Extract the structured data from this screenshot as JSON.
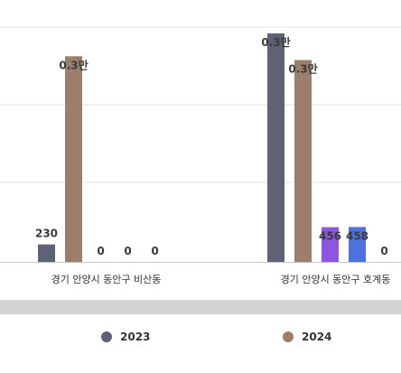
{
  "chart_data": {
    "type": "bar",
    "categories": [
      "경기 안양시 동안구 비산동",
      "경기 안양시 동안구 호계동"
    ],
    "series": [
      {
        "name": "2023",
        "values": [
          230,
          3000
        ],
        "labels": [
          "230",
          "0.3만"
        ]
      },
      {
        "name": "2024",
        "values": [
          2700,
          2650
        ],
        "labels": [
          "0.3만",
          "0.3만"
        ]
      },
      {
        "name": "",
        "values": [
          0,
          456
        ],
        "labels": [
          "0",
          "456"
        ]
      },
      {
        "name": "",
        "values": [
          0,
          458
        ],
        "labels": [
          "0",
          "458"
        ]
      },
      {
        "name": "",
        "values": [
          0,
          0
        ],
        "labels": [
          "0",
          "0"
        ]
      }
    ],
    "colors": [
      "#5f6175",
      "#9b7e6b",
      "#8c56e0",
      "#4c72e0",
      "#aaaaaa"
    ],
    "ylim": [
      0,
      3000
    ],
    "grid": true,
    "legend_position": "bottom"
  }
}
